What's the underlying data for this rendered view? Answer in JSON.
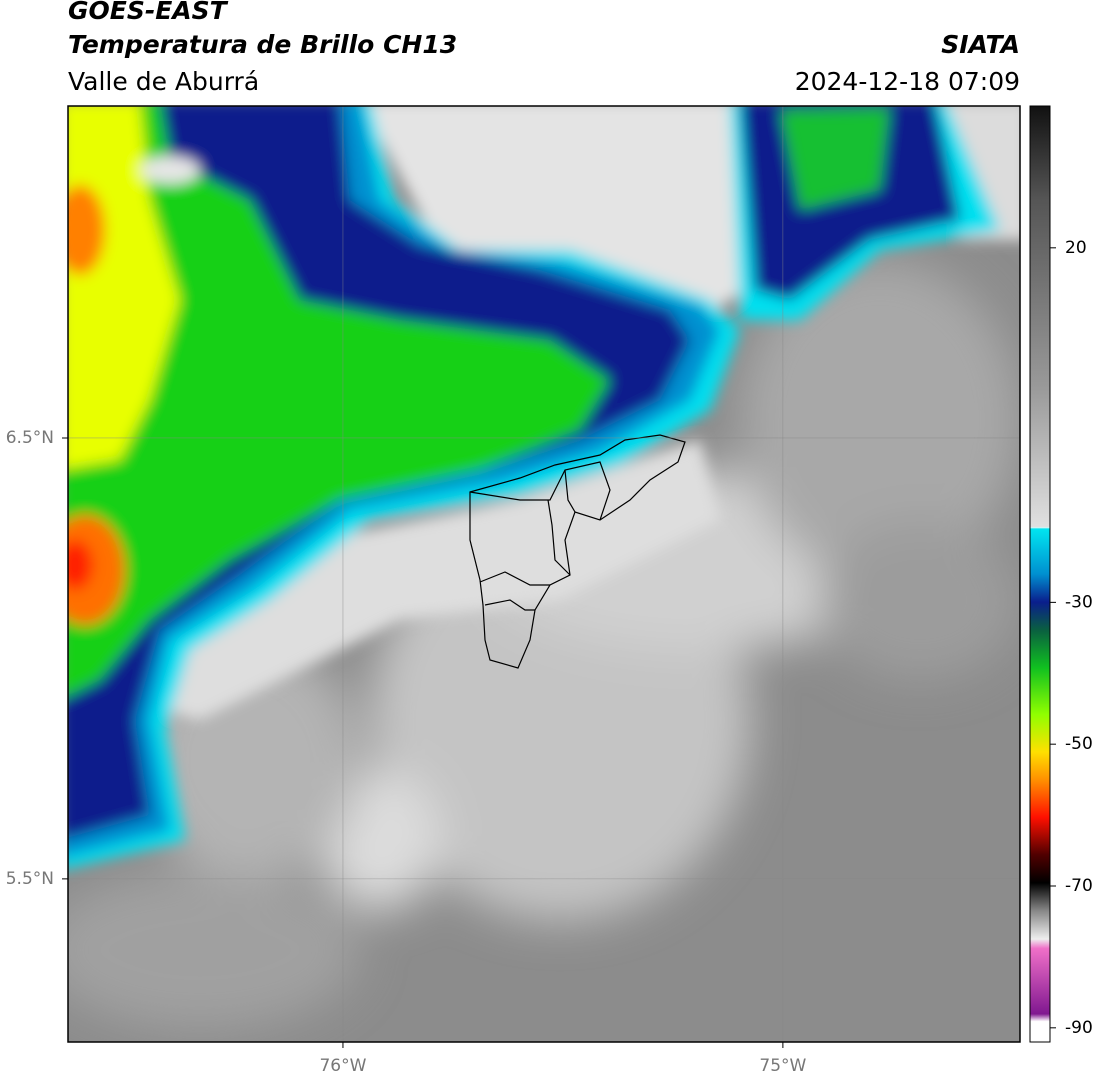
{
  "header": {
    "title": "GOES-EAST",
    "subtitle": "Temperatura de Brillo CH13",
    "source": "SIATA",
    "region": "Valle de Aburrá",
    "datetime": "2024-12-18 07:09"
  },
  "map": {
    "xlim": [
      -76.625,
      -74.461
    ],
    "ylim": [
      5.13,
      7.253
    ],
    "xticks": [
      {
        "value": -76,
        "label": "76°W"
      },
      {
        "value": -75,
        "label": "75°W"
      }
    ],
    "yticks": [
      {
        "value": 6.5,
        "label": "6.5°N"
      },
      {
        "value": 5.5,
        "label": "5.5°N"
      }
    ],
    "grid": true
  },
  "colorbar": {
    "lim": [
      -92,
      40
    ],
    "ticks": [
      20,
      -30,
      -50,
      -70,
      -90
    ]
  }
}
